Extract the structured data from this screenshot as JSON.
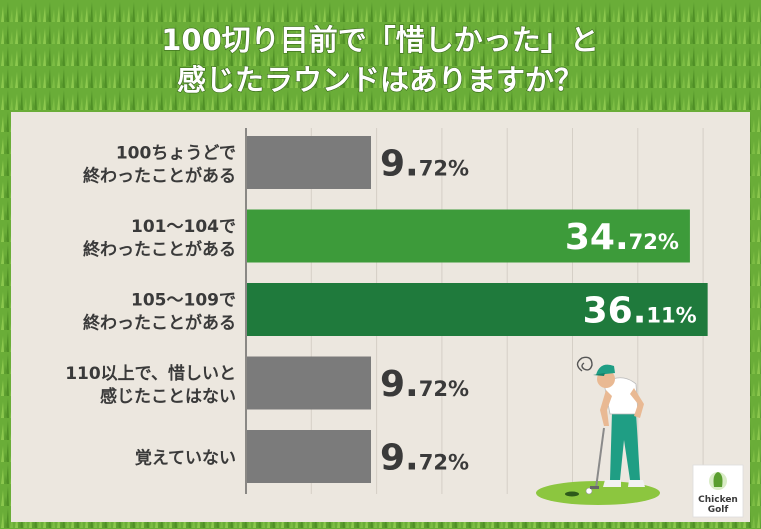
{
  "title_lines": [
    "100切り目前で「惜しかった」と",
    "感じたラウンドはありますか？"
  ],
  "colors": {
    "grass_light": "#73b43e",
    "grass_dark": "#4e8a24",
    "panel": "#ece7df",
    "grid": "#d5cfc6",
    "gray_bar": "#7b7b7b",
    "green_bar": "#3d9b3a",
    "dark_green_bar": "#1f7a3c",
    "text": "#3a3a3a"
  },
  "chart_data": {
    "type": "bar",
    "orientation": "horizontal",
    "title": "100切り目前で「惜しかった」と感じたラウンドはありますか？",
    "categories": [
      [
        "100ちょうどで",
        "終わったことがある"
      ],
      [
        "101～104で",
        "終わったことがある"
      ],
      [
        "105～109で",
        "終わったことがある"
      ],
      [
        "110以上で、惜しいと",
        "感じたことはない"
      ],
      [
        "覚えていない"
      ]
    ],
    "values": [
      9.72,
      34.72,
      36.11,
      9.72,
      9.72
    ],
    "value_labels": [
      {
        "main": "9.",
        "dec": "72%"
      },
      {
        "main": "34.",
        "dec": "72%"
      },
      {
        "main": "36.",
        "dec": "11%"
      },
      {
        "main": "9.",
        "dec": "72%"
      },
      {
        "main": "9.",
        "dec": "72%"
      }
    ],
    "bar_colors": [
      "#7b7b7b",
      "#3d9b3a",
      "#1f7a3c",
      "#7b7b7b",
      "#7b7b7b"
    ],
    "label_inside": [
      false,
      true,
      true,
      false,
      false
    ],
    "xlim": [
      0,
      37
    ],
    "grid": true
  },
  "logo": {
    "line1": "Chicken",
    "line2": "Golf"
  }
}
